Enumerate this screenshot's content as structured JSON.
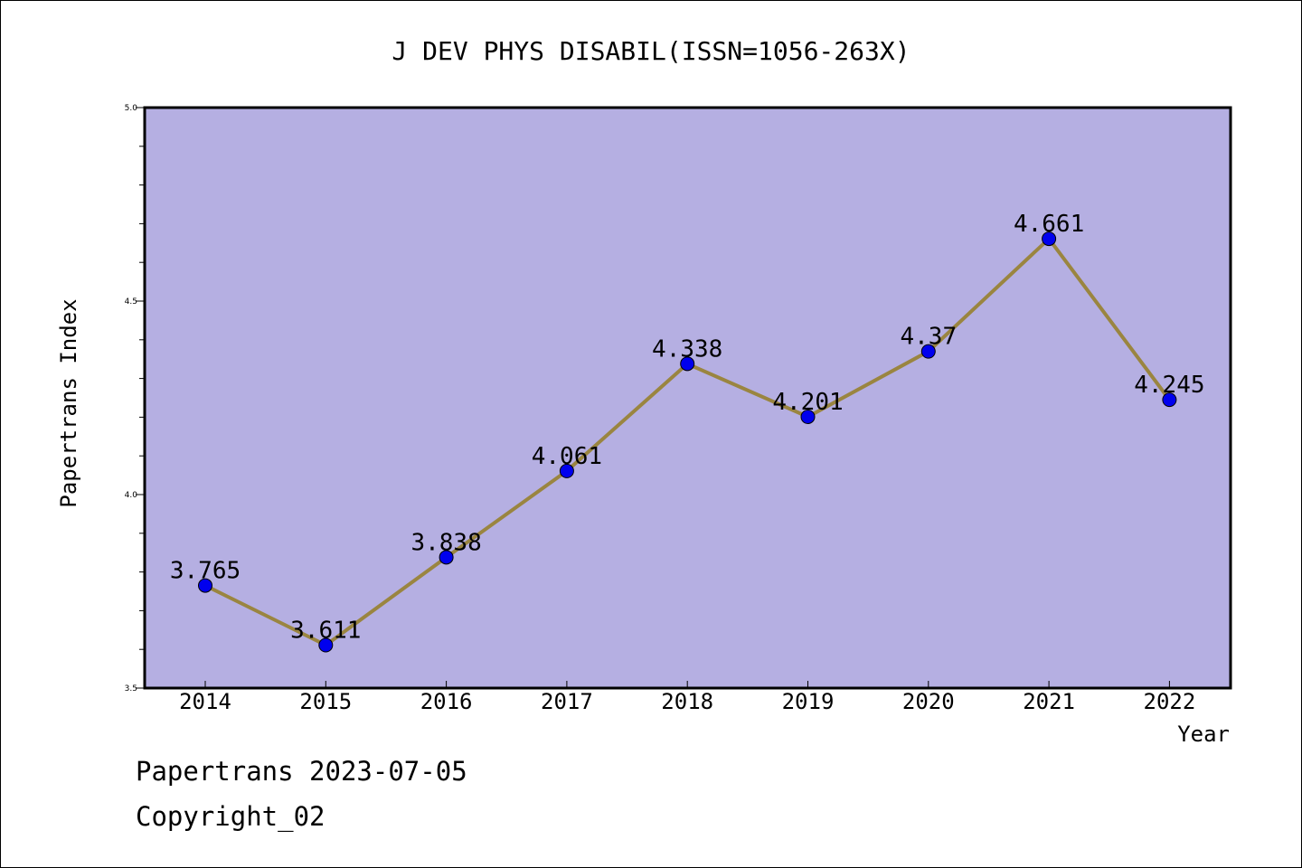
{
  "chart_data": {
    "type": "line",
    "title": "J DEV PHYS DISABIL(ISSN=1056-263X)",
    "xlabel": "Year",
    "ylabel": "Papertrans Index",
    "categories": [
      "2014",
      "2015",
      "2016",
      "2017",
      "2018",
      "2019",
      "2020",
      "2021",
      "2022"
    ],
    "series": [
      {
        "values": [
          3.765,
          3.611,
          3.838,
          4.061,
          4.338,
          4.201,
          4.37,
          4.661,
          4.245
        ],
        "labels": [
          "3.765",
          "3.611",
          "3.838",
          "4.061",
          "4.338",
          "4.201",
          "4.37",
          "4.661",
          "4.245"
        ]
      }
    ],
    "ylim": [
      3.5,
      5.0
    ],
    "yticks": [
      "3.5",
      "4.0",
      "4.5",
      "5.0"
    ],
    "grid": false,
    "colors": {
      "plot_background": "#b5afe2",
      "line": "#9a8540",
      "marker": "#0000ee"
    }
  },
  "footer": {
    "date_text": "Papertrans 2023-07-05",
    "copyright_text": "Copyright_02"
  }
}
